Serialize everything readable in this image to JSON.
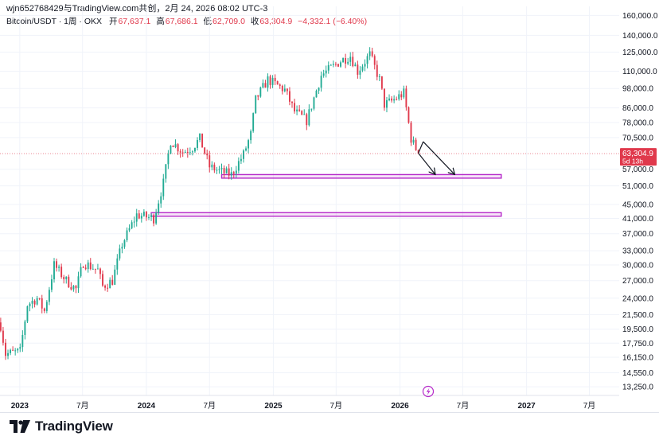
{
  "header": {
    "credit": "wjn652768429与TradingView.com共创，2月 24, 2026 08:02 UTC-3",
    "symbol": "Bitcoin/USDT · 1周 · OKX",
    "open_label": "开",
    "open": "67,637.1",
    "high_label": "高",
    "high": "67,686.1",
    "low_label": "低",
    "low": "62,709.0",
    "close_label": "收",
    "close": "63,304.9",
    "change": "−4,332.1 (−6.40%)"
  },
  "brand": {
    "name": "TradingView"
  },
  "colors": {
    "up": "#22ab94",
    "down": "#e0394c",
    "zone": "#b62ac9",
    "price_tag": "#e0394c"
  },
  "chart_data": {
    "type": "candlestick",
    "title": "Bitcoin/USDT · 1周 · OKX",
    "y_scale": "log",
    "ylim": [
      12500,
      170000
    ],
    "y_ticks": [
      160000,
      140000,
      125000,
      110000,
      98000,
      86000,
      78000,
      70500,
      57000,
      51000,
      45000,
      41000,
      37000,
      33000,
      30000,
      27000,
      24000,
      21500,
      19500,
      17750,
      16150,
      14550,
      13250
    ],
    "y_tick_labels": [
      "160,000.0",
      "140,000.0",
      "125,000.0",
      "110,000.0",
      "98,000.0",
      "86,000.0",
      "78,000.0",
      "70,500.0",
      "57,000.0",
      "51,000.0",
      "45,000.0",
      "41,000.0",
      "37,000.0",
      "33,000.0",
      "30,000.0",
      "27,000.0",
      "24,000.0",
      "21,500.0",
      "19,500.0",
      "17,750.0",
      "16,150.0",
      "14,550.0",
      "13,250.0"
    ],
    "x_ticks": [
      {
        "date": "2023-01-01",
        "label": "2023",
        "bold": true
      },
      {
        "date": "2023-07-01",
        "label": "7月",
        "bold": false
      },
      {
        "date": "2024-01-01",
        "label": "2024",
        "bold": true
      },
      {
        "date": "2024-07-01",
        "label": "7月",
        "bold": false
      },
      {
        "date": "2025-01-01",
        "label": "2025",
        "bold": true
      },
      {
        "date": "2025-07-01",
        "label": "7月",
        "bold": false
      },
      {
        "date": "2026-01-01",
        "label": "2026",
        "bold": true
      },
      {
        "date": "2026-07-01",
        "label": "7月",
        "bold": false
      },
      {
        "date": "2027-01-01",
        "label": "2027",
        "bold": true
      },
      {
        "date": "2027-07-01",
        "label": "7月",
        "bold": false
      }
    ],
    "xlim": [
      "2022-11-05",
      "2027-09-25"
    ],
    "key_prices": [
      {
        "date": "2022-11-07",
        "price": 20000
      },
      {
        "date": "2022-11-21",
        "price": 16500
      },
      {
        "date": "2023-01-02",
        "price": 16800
      },
      {
        "date": "2023-01-23",
        "price": 23000
      },
      {
        "date": "2023-02-20",
        "price": 24000
      },
      {
        "date": "2023-03-13",
        "price": 22000
      },
      {
        "date": "2023-04-10",
        "price": 30000
      },
      {
        "date": "2023-05-15",
        "price": 27000
      },
      {
        "date": "2023-06-12",
        "price": 25500
      },
      {
        "date": "2023-07-03",
        "price": 30500
      },
      {
        "date": "2023-08-14",
        "price": 29000
      },
      {
        "date": "2023-08-28",
        "price": 26000
      },
      {
        "date": "2023-09-25",
        "price": 27000
      },
      {
        "date": "2023-10-23",
        "price": 34500
      },
      {
        "date": "2023-12-04",
        "price": 42000
      },
      {
        "date": "2024-01-22",
        "price": 41000
      },
      {
        "date": "2024-02-19",
        "price": 52000
      },
      {
        "date": "2024-03-11",
        "price": 69000
      },
      {
        "date": "2024-04-15",
        "price": 64000
      },
      {
        "date": "2024-05-13",
        "price": 66000
      },
      {
        "date": "2024-06-03",
        "price": 70000
      },
      {
        "date": "2024-07-01",
        "price": 58000
      },
      {
        "date": "2024-08-05",
        "price": 56000
      },
      {
        "date": "2024-09-02",
        "price": 55000
      },
      {
        "date": "2024-10-07",
        "price": 63000
      },
      {
        "date": "2024-10-28",
        "price": 72000
      },
      {
        "date": "2024-11-11",
        "price": 91000
      },
      {
        "date": "2024-12-16",
        "price": 104000
      },
      {
        "date": "2025-02-03",
        "price": 97000
      },
      {
        "date": "2025-03-03",
        "price": 84000
      },
      {
        "date": "2025-04-07",
        "price": 79000
      },
      {
        "date": "2025-05-19",
        "price": 107000
      },
      {
        "date": "2025-07-14",
        "price": 118000
      },
      {
        "date": "2025-08-11",
        "price": 122000
      },
      {
        "date": "2025-09-01",
        "price": 110000
      },
      {
        "date": "2025-10-06",
        "price": 123000
      },
      {
        "date": "2025-11-03",
        "price": 104000
      },
      {
        "date": "2025-11-17",
        "price": 88000
      },
      {
        "date": "2025-12-08",
        "price": 90000
      },
      {
        "date": "2026-01-12",
        "price": 95000
      },
      {
        "date": "2026-02-02",
        "price": 70000
      },
      {
        "date": "2026-02-23",
        "price": 63304.9
      }
    ],
    "zones": [
      {
        "from": "2024-08-05",
        "to": "2026-10-20",
        "top": 55000,
        "bottom": 53700
      },
      {
        "from": "2024-01-15",
        "to": "2026-10-20",
        "top": 42600,
        "bottom": 41600
      }
    ],
    "last_price": 63304.9,
    "last_price_label": "63,304.9",
    "countdown_label": "5d 13h",
    "projection_arrows": [
      {
        "from": {
          "date": "2026-02-23",
          "price": 63500
        },
        "to": {
          "date": "2026-04-13",
          "price": 55000
        }
      },
      {
        "from": {
          "date": "2026-02-23",
          "price": 63500
        },
        "to": {
          "date": "2026-03-09",
          "price": 68600
        }
      },
      {
        "from": {
          "date": "2026-03-09",
          "price": 68600
        },
        "to": {
          "date": "2026-06-08",
          "price": 55000
        }
      }
    ]
  }
}
